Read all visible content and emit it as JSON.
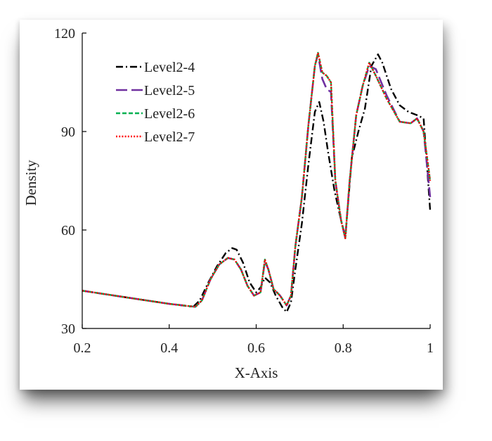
{
  "chart_data": {
    "type": "line",
    "title": "",
    "xlabel": "X-Axis",
    "ylabel": "Density",
    "xlim": [
      0.2,
      1.0
    ],
    "ylim": [
      30,
      120
    ],
    "xticks": [
      "0.2",
      "0.4",
      "0.6",
      "0.8",
      "1"
    ],
    "yticks": [
      "30",
      "60",
      "90",
      "120"
    ],
    "grid": false,
    "legend_position": "top-left",
    "series": [
      {
        "name": "Level2-4",
        "color": "#000000",
        "dash": "dashdot",
        "points": [
          [
            0.2,
            41.5
          ],
          [
            0.3,
            39.5
          ],
          [
            0.4,
            37.5
          ],
          [
            0.455,
            36.6
          ],
          [
            0.47,
            38.5
          ],
          [
            0.49,
            44
          ],
          [
            0.51,
            49
          ],
          [
            0.53,
            53
          ],
          [
            0.545,
            54.5
          ],
          [
            0.555,
            54
          ],
          [
            0.57,
            50
          ],
          [
            0.585,
            44
          ],
          [
            0.6,
            41
          ],
          [
            0.61,
            42.5
          ],
          [
            0.62,
            45.5
          ],
          [
            0.632,
            44
          ],
          [
            0.645,
            40
          ],
          [
            0.66,
            36.5
          ],
          [
            0.67,
            35
          ],
          [
            0.68,
            38
          ],
          [
            0.69,
            48
          ],
          [
            0.705,
            62
          ],
          [
            0.72,
            80
          ],
          [
            0.735,
            96
          ],
          [
            0.745,
            99
          ],
          [
            0.755,
            93
          ],
          [
            0.765,
            84
          ],
          [
            0.78,
            72
          ],
          [
            0.795,
            63
          ],
          [
            0.805,
            58
          ],
          [
            0.82,
            82
          ],
          [
            0.835,
            90
          ],
          [
            0.85,
            97
          ],
          [
            0.865,
            110
          ],
          [
            0.88,
            113.5
          ],
          [
            0.89,
            111
          ],
          [
            0.91,
            103
          ],
          [
            0.93,
            98
          ],
          [
            0.95,
            96
          ],
          [
            0.97,
            95
          ],
          [
            0.985,
            94
          ],
          [
            1.0,
            66
          ]
        ]
      },
      {
        "name": "Level2-5",
        "color": "#7030A0",
        "dash": "longdash",
        "points": [
          [
            0.2,
            41.5
          ],
          [
            0.3,
            39.5
          ],
          [
            0.4,
            37.5
          ],
          [
            0.46,
            36.6
          ],
          [
            0.475,
            38.5
          ],
          [
            0.495,
            45
          ],
          [
            0.515,
            49.5
          ],
          [
            0.535,
            51.5
          ],
          [
            0.55,
            51
          ],
          [
            0.565,
            48
          ],
          [
            0.58,
            43
          ],
          [
            0.595,
            40
          ],
          [
            0.61,
            41
          ],
          [
            0.62,
            50.5
          ],
          [
            0.628,
            48
          ],
          [
            0.64,
            42
          ],
          [
            0.655,
            40
          ],
          [
            0.67,
            37
          ],
          [
            0.68,
            40
          ],
          [
            0.69,
            55
          ],
          [
            0.705,
            70
          ],
          [
            0.72,
            92
          ],
          [
            0.735,
            110
          ],
          [
            0.742,
            113.5
          ],
          [
            0.752,
            106
          ],
          [
            0.762,
            103
          ],
          [
            0.772,
            102
          ],
          [
            0.782,
            75
          ],
          [
            0.795,
            63
          ],
          [
            0.805,
            57.5
          ],
          [
            0.815,
            75
          ],
          [
            0.83,
            95
          ],
          [
            0.845,
            104
          ],
          [
            0.86,
            110
          ],
          [
            0.875,
            109
          ],
          [
            0.9,
            101
          ],
          [
            0.93,
            93
          ],
          [
            0.955,
            92.5
          ],
          [
            0.97,
            94
          ],
          [
            0.985,
            90
          ],
          [
            1.0,
            70
          ]
        ]
      },
      {
        "name": "Level2-6",
        "color": "#00B050",
        "dash": "dashed",
        "points": [
          [
            0.2,
            41.5
          ],
          [
            0.3,
            39.5
          ],
          [
            0.4,
            37.5
          ],
          [
            0.46,
            36.6
          ],
          [
            0.475,
            38.5
          ],
          [
            0.495,
            45
          ],
          [
            0.515,
            49.5
          ],
          [
            0.535,
            51.5
          ],
          [
            0.55,
            51
          ],
          [
            0.565,
            48
          ],
          [
            0.58,
            43
          ],
          [
            0.595,
            40
          ],
          [
            0.61,
            41
          ],
          [
            0.62,
            51
          ],
          [
            0.628,
            48
          ],
          [
            0.64,
            42
          ],
          [
            0.655,
            40
          ],
          [
            0.67,
            37
          ],
          [
            0.68,
            40
          ],
          [
            0.69,
            55
          ],
          [
            0.705,
            70
          ],
          [
            0.72,
            92
          ],
          [
            0.735,
            110
          ],
          [
            0.742,
            114
          ],
          [
            0.752,
            108
          ],
          [
            0.762,
            107
          ],
          [
            0.772,
            105
          ],
          [
            0.782,
            75
          ],
          [
            0.795,
            63
          ],
          [
            0.805,
            57.5
          ],
          [
            0.815,
            75
          ],
          [
            0.83,
            95
          ],
          [
            0.845,
            104
          ],
          [
            0.86,
            111
          ],
          [
            0.875,
            107
          ],
          [
            0.9,
            100
          ],
          [
            0.93,
            93
          ],
          [
            0.955,
            92.5
          ],
          [
            0.97,
            94
          ],
          [
            0.985,
            90
          ],
          [
            1.0,
            75
          ]
        ]
      },
      {
        "name": "Level2-7",
        "color": "#FF0000",
        "dash": "dotted",
        "points": [
          [
            0.2,
            41.5
          ],
          [
            0.3,
            39.5
          ],
          [
            0.4,
            37.5
          ],
          [
            0.46,
            36.6
          ],
          [
            0.475,
            38.5
          ],
          [
            0.495,
            45
          ],
          [
            0.515,
            49.5
          ],
          [
            0.535,
            51.5
          ],
          [
            0.55,
            51
          ],
          [
            0.565,
            48
          ],
          [
            0.58,
            43
          ],
          [
            0.595,
            40
          ],
          [
            0.61,
            41
          ],
          [
            0.62,
            51
          ],
          [
            0.628,
            48
          ],
          [
            0.64,
            42
          ],
          [
            0.655,
            40
          ],
          [
            0.67,
            37
          ],
          [
            0.68,
            40
          ],
          [
            0.69,
            55
          ],
          [
            0.705,
            70
          ],
          [
            0.72,
            92
          ],
          [
            0.735,
            110
          ],
          [
            0.742,
            114
          ],
          [
            0.752,
            108
          ],
          [
            0.762,
            107
          ],
          [
            0.772,
            105
          ],
          [
            0.782,
            75
          ],
          [
            0.795,
            63
          ],
          [
            0.805,
            57.5
          ],
          [
            0.815,
            75
          ],
          [
            0.83,
            95
          ],
          [
            0.845,
            104
          ],
          [
            0.86,
            111
          ],
          [
            0.875,
            107
          ],
          [
            0.9,
            100
          ],
          [
            0.93,
            93
          ],
          [
            0.955,
            92.5
          ],
          [
            0.97,
            94
          ],
          [
            0.985,
            90
          ],
          [
            1.0,
            75
          ]
        ]
      }
    ]
  }
}
